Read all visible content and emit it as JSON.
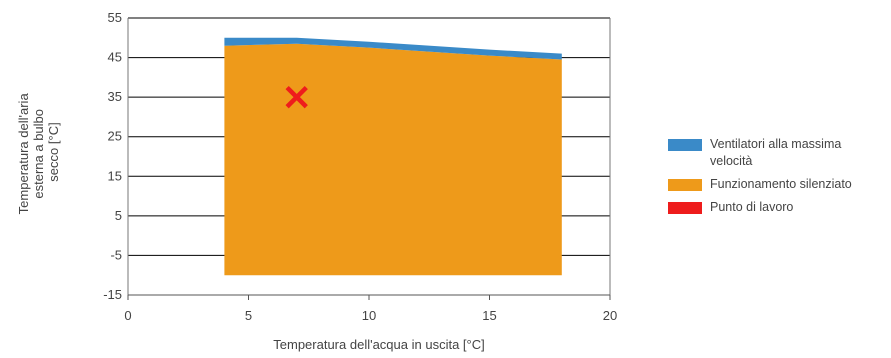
{
  "chart_data": {
    "type": "area",
    "xlabel": "Temperatura dell'acqua in uscita [°C]",
    "ylabel_lines": [
      "Temperatura dell'aria",
      "esterna a bulbo",
      "secco [°C]"
    ],
    "xlim": [
      0,
      20
    ],
    "ylim": [
      -15,
      55
    ],
    "xticks": [
      0,
      5,
      10,
      15,
      20
    ],
    "yticks": [
      55,
      45,
      35,
      25,
      15,
      5,
      -5,
      -15
    ],
    "grid": "horizontal",
    "legend_position": "right",
    "series": [
      {
        "name": "Ventilatori alla massima velocità",
        "color": "#3a8ac8",
        "x": [
          4,
          7,
          10,
          15,
          18
        ],
        "y_low": [
          48,
          48.5,
          47.5,
          45.5,
          44.5
        ],
        "y_high": [
          50,
          50,
          49,
          47,
          46
        ]
      },
      {
        "name": "Funzionamento silenziato",
        "color": "#ee9a1a",
        "x": [
          4,
          7,
          10,
          15,
          18
        ],
        "y_low": [
          -10,
          -10,
          -10,
          -10,
          -10
        ],
        "y_high": [
          48,
          48.5,
          47.5,
          45.5,
          44.5
        ]
      },
      {
        "name": "Punto di lavoro",
        "color": "#ee1c1c",
        "points": [
          {
            "x": 7,
            "y": 35
          }
        ]
      }
    ]
  }
}
